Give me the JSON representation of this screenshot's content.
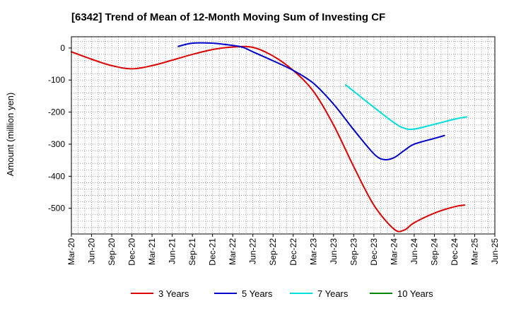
{
  "chart_data": {
    "type": "line",
    "title": "[6342]  Trend of Mean of 12-Month Moving Sum of Investing CF",
    "xlabel": "",
    "ylabel": "Amount (million yen)",
    "ylim": [
      -580,
      35
    ],
    "y_ticks": [
      0,
      -100,
      -200,
      -300,
      -400,
      -500
    ],
    "x_tick_labels": [
      "Mar-20",
      "Jun-20",
      "Sep-20",
      "Dec-20",
      "Mar-21",
      "Jun-21",
      "Sep-21",
      "Dec-21",
      "Mar-22",
      "Jun-22",
      "Sep-22",
      "Dec-22",
      "Mar-23",
      "Jun-23",
      "Sep-23",
      "Dec-23",
      "Mar-24",
      "Jun-24",
      "Sep-24",
      "Dec-24",
      "Mar-25",
      "Jun-25"
    ],
    "grid": true,
    "legend_position": "bottom",
    "series": [
      {
        "name": "3 Years",
        "color": "#dd0000",
        "points": [
          [
            0,
            -12
          ],
          [
            1,
            -35
          ],
          [
            2,
            -55
          ],
          [
            3,
            -65
          ],
          [
            4,
            -55
          ],
          [
            5,
            -38
          ],
          [
            6,
            -20
          ],
          [
            7,
            -5
          ],
          [
            8,
            3
          ],
          [
            9,
            2
          ],
          [
            10,
            -25
          ],
          [
            11,
            -70
          ],
          [
            12,
            -135
          ],
          [
            13,
            -240
          ],
          [
            14,
            -370
          ],
          [
            15,
            -490
          ],
          [
            16,
            -565
          ],
          [
            16.5,
            -568
          ],
          [
            17,
            -545
          ],
          [
            18,
            -515
          ],
          [
            19,
            -495
          ],
          [
            19.5,
            -490
          ]
        ]
      },
      {
        "name": "5 Years",
        "color": "#0000cc",
        "points": [
          [
            5.3,
            5
          ],
          [
            6,
            15
          ],
          [
            7,
            15
          ],
          [
            8,
            8
          ],
          [
            8.5,
            2
          ],
          [
            9,
            -12
          ],
          [
            10,
            -40
          ],
          [
            11,
            -70
          ],
          [
            12,
            -110
          ],
          [
            13,
            -175
          ],
          [
            14,
            -255
          ],
          [
            15,
            -330
          ],
          [
            15.5,
            -348
          ],
          [
            16,
            -342
          ],
          [
            16.5,
            -320
          ],
          [
            17,
            -300
          ],
          [
            18,
            -282
          ],
          [
            18.5,
            -273
          ]
        ]
      },
      {
        "name": "7 Years",
        "color": "#00dddd",
        "points": [
          [
            13.6,
            -115
          ],
          [
            14,
            -135
          ],
          [
            15,
            -185
          ],
          [
            16,
            -233
          ],
          [
            16.5,
            -250
          ],
          [
            17,
            -253
          ],
          [
            18,
            -238
          ],
          [
            19,
            -222
          ],
          [
            19.6,
            -215
          ]
        ]
      },
      {
        "name": "10 Years",
        "color": "#008800",
        "points": []
      }
    ]
  }
}
